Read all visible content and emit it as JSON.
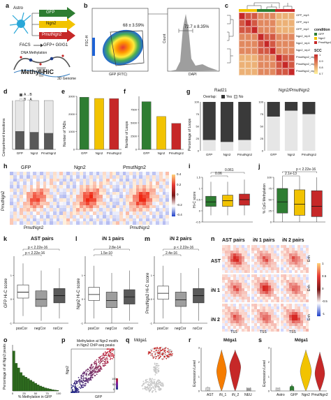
{
  "panel_letters": [
    "a",
    "b",
    "c",
    "d",
    "e",
    "f",
    "g",
    "h",
    "i",
    "j",
    "k",
    "l",
    "m",
    "n",
    "o",
    "p",
    "q",
    "r",
    "s"
  ],
  "panel_a": {
    "cell_label": "Astro",
    "arrows": [
      "GFP",
      "Ngn2",
      "PmutNgn2"
    ],
    "facs": "FACS",
    "facs_target": "GFP+ G0/G1",
    "method": "DNA Methylation",
    "method_big": "Methyl-HiC",
    "genome": "3D Genome"
  },
  "panel_b": {
    "gate1": "68 ± 3.59%",
    "gate2": "72.7 ± 8.35%",
    "x1": "GFP (FITC)",
    "y1": "FSC-H",
    "x2": "DAPI",
    "y2": "Count"
  },
  "panel_c": {
    "legend_title": "condition",
    "legend_items": [
      {
        "name": "GFP",
        "color": "#2e7d32"
      },
      {
        "name": "Ngn2",
        "color": "#f2c300"
      },
      {
        "name": "PmutNgn2",
        "color": "#c62828"
      }
    ],
    "scale_title": "SCC",
    "scale_ticks": [
      "1",
      "0.9",
      "0.8",
      "0.7"
    ],
    "row_labels": [
      "GFP_rep3",
      "GFP_rep1",
      "GFP_rep2",
      "Ngn2_rep3",
      "Ngn2_rep1",
      "Ngn2_rep2",
      "PmutNgn2_rep1",
      "PmutNgn2_rep3",
      "PmutNgn2_rep2"
    ]
  },
  "panel_d": {
    "chart_data": {
      "type": "bar",
      "categories": [
        "GFP",
        "Ngn2",
        "PmutNgn2"
      ],
      "series": [
        {
          "name": "A→B",
          "values": [
            0.37,
            0.35,
            0.33
          ]
        },
        {
          "name": "B→A",
          "values": [
            0.63,
            0.65,
            0.67
          ]
        }
      ],
      "ylabel": "Compartment transitions",
      "ylim": [
        0,
        1
      ]
    },
    "legend": [
      "A→B",
      "B→A"
    ]
  },
  "panel_e": {
    "chart_data": {
      "type": "bar",
      "categories": [
        "GFP",
        "Ngn2",
        "PmutNgn2"
      ],
      "values": [
        2950,
        2880,
        2870
      ],
      "ylabel": "Number of TADs",
      "ylim": [
        0,
        3000
      ],
      "yticks": [
        0,
        1000,
        2000,
        3000
      ],
      "colors": [
        "#2e7d32",
        "#f2c300",
        "#c62828"
      ]
    }
  },
  "panel_f": {
    "chart_data": {
      "type": "bar",
      "categories": [
        "GFP",
        "Ngn2",
        "PmutNgn2"
      ],
      "values": [
        9000,
        6200,
        4900
      ],
      "ylabel": "Number of Loops",
      "ylim": [
        0,
        10000
      ],
      "yticks": [
        0,
        2500,
        5000,
        7500
      ],
      "colors": [
        "#2e7d32",
        "#f2c300",
        "#c62828"
      ]
    }
  },
  "panel_g": {
    "left_title": "Rad21",
    "right_title": "Ngn2/PmutNgn2",
    "legend_label": "Overlap:",
    "legend_items": [
      "Yes",
      "No"
    ],
    "ylabel": "Percentage of Loops",
    "chart_data": [
      {
        "type": "bar",
        "title": "Rad21",
        "categories": [
          "GFP",
          "Ngn2",
          "PmutNgn2"
        ],
        "series": [
          {
            "name": "Yes",
            "values": [
              78,
              82,
              78
            ]
          },
          {
            "name": "No",
            "values": [
              22,
              18,
              22
            ]
          }
        ],
        "ylim": [
          0,
          100
        ]
      },
      {
        "type": "bar",
        "title": "Ngn2/PmutNgn2",
        "categories": [
          "GFP",
          "Ngn2",
          "PmutNgn2"
        ],
        "series": [
          {
            "name": "Yes",
            "values": [
              30,
              18,
              25
            ]
          },
          {
            "name": "No",
            "values": [
              70,
              82,
              75
            ]
          }
        ],
        "ylim": [
          0,
          100
        ]
      }
    ],
    "yticks": [
      "0",
      "25",
      "50",
      "75",
      "100"
    ]
  },
  "panel_h": {
    "titles": [
      "GFP",
      "Ngn2",
      "PmutNgn2"
    ],
    "axis": "PmutNgn2",
    "scale_ticks": [
      "0.4",
      "0.2",
      "0",
      "-0.2",
      "-0.4"
    ]
  },
  "panel_i": {
    "ylabel": "Hi-C score",
    "pvals": [
      "0.06",
      "0.061"
    ],
    "chart_data": {
      "type": "box",
      "categories": [
        "GFP",
        "Ngn2",
        "PmutNgn2"
      ],
      "median": [
        0.4,
        0.45,
        0.5
      ],
      "q1": [
        0.2,
        0.2,
        0.25
      ],
      "q3": [
        0.65,
        0.7,
        0.75
      ],
      "min": [
        -0.2,
        -0.2,
        -0.2
      ],
      "max": [
        1.3,
        1.3,
        1.4
      ]
    }
  },
  "panel_j": {
    "ylabel": "% CpG Methylation",
    "pvals": [
      "2.1e-13",
      "p < 2.22e-16"
    ],
    "chart_data": {
      "type": "box",
      "categories": [
        "GFP",
        "Ngn2",
        "PmutNgn2"
      ],
      "median": [
        45,
        40,
        35
      ],
      "q1": [
        20,
        15,
        12
      ],
      "q3": [
        75,
        72,
        70
      ],
      "min": [
        0,
        0,
        0
      ],
      "max": [
        100,
        100,
        100
      ]
    }
  },
  "panel_k": {
    "title": "AST pairs",
    "ylabel": "GFP Hi-C score",
    "pvals": [
      "p < 2.22e-16",
      "p < 2.22e-16"
    ],
    "categories": [
      "posCor",
      "negCor",
      "noCor"
    ]
  },
  "panel_l": {
    "title": "iN 1 pairs",
    "ylabel": "Ngn2 Hi-C score",
    "pvals": [
      "2.8e-14",
      "1.5e-10"
    ],
    "categories": [
      "posCor",
      "negCor",
      "noCor"
    ]
  },
  "panel_m": {
    "title": "iN 2 pairs",
    "ylabel": "PmutNgn2 Hi-C score",
    "pvals": [
      "p < 2.22e-16",
      "2.4e-16"
    ],
    "categories": [
      "posCor",
      "negCor",
      "noCor"
    ]
  },
  "panel_n": {
    "col_titles": [
      "AST pairs",
      "iN 1 pairs",
      "iN 2 pairs"
    ],
    "row_labels": [
      "AST",
      "iN 1",
      "iN 2"
    ],
    "x_label": "TSS",
    "y_label": "Enh",
    "scale_ticks": [
      "1",
      "0.5",
      "0",
      "-0.5",
      "-1"
    ]
  },
  "panel_o": {
    "ylabel": "Percentage of all Ngn2 peaks",
    "xlabel": "% Methylation in GFP",
    "xticks": [
      "0",
      "25",
      "50",
      "75",
      "100"
    ],
    "chart_data": {
      "type": "bar",
      "values": [
        13,
        9,
        7.5,
        6,
        5,
        4.5,
        4,
        3.5,
        3,
        2.5,
        2,
        1.6,
        1.3,
        1,
        0.8,
        0.6,
        0.4,
        0.3,
        0.2
      ],
      "ylim": [
        0,
        15
      ]
    }
  },
  "panel_p": {
    "title1": "Methylation at Ngn2 motifs",
    "title2": "in Ngn2 ChIP-seq peaks",
    "xlabel": "GFP",
    "ylabel": "Ngn2",
    "legend_ticks": [
      "100",
      "50",
      "0"
    ]
  },
  "panel_q": {
    "title": "Mdga1"
  },
  "panel_r": {
    "title": "Mdga1",
    "ylabel": "Expression Level",
    "categories": [
      "AST",
      "iN_1",
      "iN_2",
      "NEU"
    ]
  },
  "panel_s": {
    "title": "Mdga1",
    "ylabel": "Expression Level",
    "categories": [
      "Astro",
      "GFP",
      "Ngn2",
      "PmutNgn2"
    ]
  }
}
